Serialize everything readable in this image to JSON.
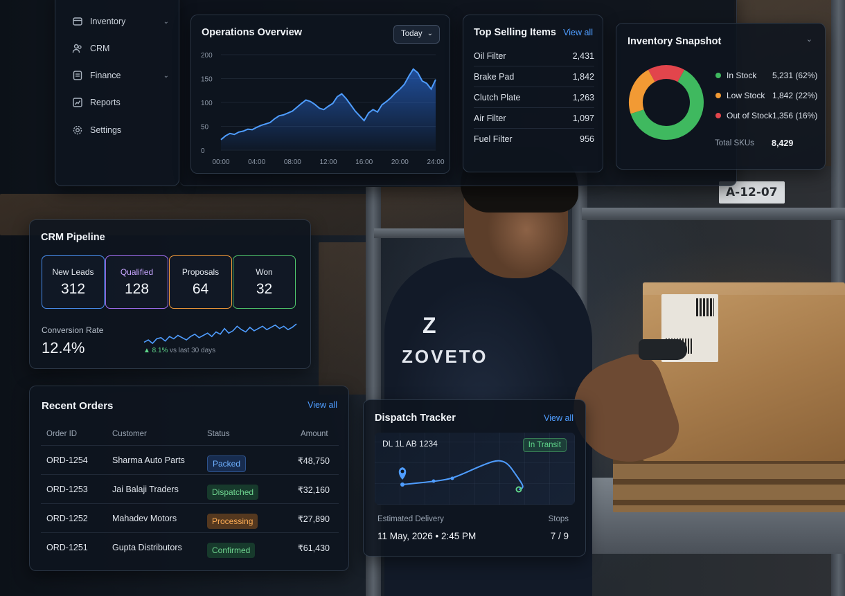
{
  "sidebar": {
    "items": [
      {
        "label": "Inventory",
        "icon": "box-icon",
        "expandable": true
      },
      {
        "label": "CRM",
        "icon": "users-icon",
        "expandable": false
      },
      {
        "label": "Finance",
        "icon": "finance-icon",
        "expandable": true
      },
      {
        "label": "Reports",
        "icon": "chart-icon",
        "expandable": false
      },
      {
        "label": "Settings",
        "icon": "gear-icon",
        "expandable": false
      }
    ]
  },
  "operations": {
    "title": "Operations Overview",
    "range_label": "Today",
    "chart_data": {
      "type": "area",
      "x_ticks": [
        "00:00",
        "04:00",
        "08:00",
        "12:00",
        "16:00",
        "20:00",
        "24:00"
      ],
      "y_ticks": [
        "0",
        "50",
        "100",
        "150",
        "200"
      ],
      "ylim": [
        0,
        200
      ],
      "xlim": [
        0,
        24
      ],
      "x": [
        0,
        0.5,
        1,
        1.5,
        2,
        2.5,
        3,
        3.5,
        4,
        4.5,
        5,
        5.5,
        6,
        6.5,
        7,
        7.5,
        8,
        8.5,
        9,
        9.5,
        10,
        10.5,
        11,
        11.5,
        12,
        12.5,
        13,
        13.5,
        14,
        14.5,
        15,
        15.5,
        16,
        16.5,
        17,
        17.5,
        18,
        18.5,
        19,
        19.5,
        20,
        20.5,
        21,
        21.5,
        22,
        22.5,
        23,
        23.5,
        24
      ],
      "y": [
        22,
        30,
        35,
        33,
        38,
        40,
        44,
        43,
        48,
        52,
        55,
        58,
        66,
        72,
        74,
        78,
        82,
        90,
        98,
        105,
        102,
        96,
        88,
        85,
        92,
        98,
        112,
        118,
        108,
        95,
        82,
        72,
        62,
        78,
        85,
        80,
        95,
        102,
        110,
        120,
        128,
        138,
        155,
        170,
        162,
        145,
        140,
        128,
        148
      ]
    }
  },
  "top_selling": {
    "title": "Top Selling Items",
    "view_all": "View all",
    "items": [
      {
        "name": "Oil Filter",
        "qty": "2,431"
      },
      {
        "name": "Brake Pad",
        "qty": "1,842"
      },
      {
        "name": "Clutch Plate",
        "qty": "1,263"
      },
      {
        "name": "Air Filter",
        "qty": "1,097"
      },
      {
        "name": "Fuel Filter",
        "qty": "956"
      }
    ]
  },
  "inventory": {
    "title": "Inventory Snapshot",
    "chart_data": {
      "type": "pie",
      "categories": [
        "In Stock",
        "Low Stock",
        "Out of Stock"
      ],
      "values": [
        5231,
        1842,
        1356
      ],
      "percents": [
        62,
        22,
        16
      ],
      "colors": [
        "#3fb95f",
        "#f29a34",
        "#e2454c"
      ]
    },
    "legend": [
      {
        "label": "In Stock",
        "value": "5,231 (62%)",
        "color": "#3fb95f"
      },
      {
        "label": "Low Stock",
        "value": "1,842 (22%)",
        "color": "#f29a34"
      },
      {
        "label": "Out of Stock",
        "value": "1,356 (16%)",
        "color": "#e2454c"
      }
    ],
    "total_label": "Total SKUs",
    "total_value": "8,429"
  },
  "crm": {
    "title": "CRM Pipeline",
    "stages": [
      {
        "label": "New Leads",
        "value": "312",
        "color": "#4a8ff0"
      },
      {
        "label": "Qualified",
        "value": "128",
        "color": "#a06ef0"
      },
      {
        "label": "Proposals",
        "value": "64",
        "color": "#f0993a"
      },
      {
        "label": "Won",
        "value": "32",
        "color": "#4fc46b"
      }
    ],
    "conversion_label": "Conversion Rate",
    "conversion_value": "12.4%",
    "trend_delta": "▲ 8.1%",
    "trend_note": "vs last 30 days",
    "sparkline": [
      10,
      12,
      9,
      13,
      14,
      11,
      15,
      13,
      16,
      14,
      12,
      15,
      17,
      14,
      16,
      18,
      15,
      19,
      17,
      22,
      18,
      20,
      24,
      21,
      19,
      23,
      20,
      22,
      24,
      21,
      23,
      25,
      22,
      24,
      21,
      23,
      26
    ]
  },
  "orders": {
    "title": "Recent Orders",
    "view_all": "View all",
    "columns": [
      "Order ID",
      "Customer",
      "Status",
      "Amount"
    ],
    "rows": [
      {
        "id": "ORD-1254",
        "customer": "Sharma Auto Parts",
        "status": "Packed",
        "amount": "₹48,750",
        "kind": "packed"
      },
      {
        "id": "ORD-1253",
        "customer": "Jai Balaji Traders",
        "status": "Dispatched",
        "amount": "₹32,160",
        "kind": "dispatched"
      },
      {
        "id": "ORD-1252",
        "customer": "Mahadev Motors",
        "status": "Processing",
        "amount": "₹27,890",
        "kind": "processing"
      },
      {
        "id": "ORD-1251",
        "customer": "Gupta Distributors",
        "status": "Confirmed",
        "amount": "₹61,430",
        "kind": "confirmed"
      }
    ]
  },
  "dispatch": {
    "title": "Dispatch Tracker",
    "view_all": "View all",
    "vehicle": "DL 1L AB 1234",
    "status": "In Transit",
    "eta_label": "Estimated Delivery",
    "eta_value": "11 May, 2026 • 2:45 PM",
    "stops_label": "Stops",
    "stops_value": "7 / 9"
  },
  "branding": {
    "logo_glyph": "Z",
    "wordmark": "ZOVETO"
  },
  "scene": {
    "shelf_signs": [
      "A-12-07"
    ]
  }
}
